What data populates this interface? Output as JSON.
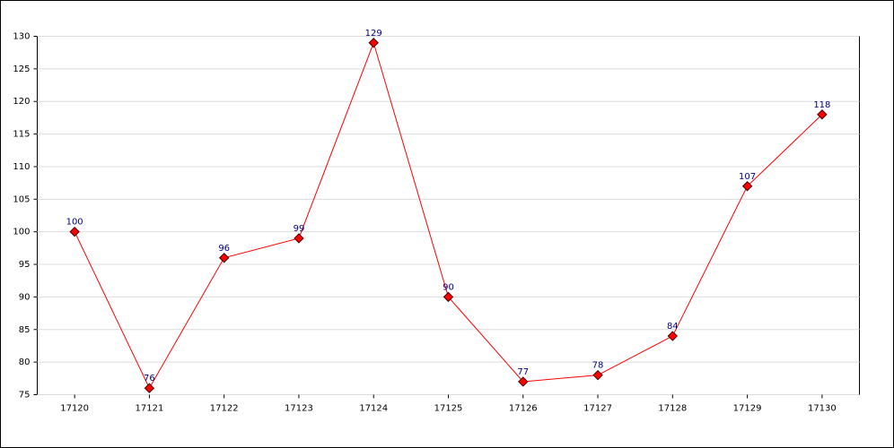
{
  "chart_data": {
    "type": "line",
    "categories": [
      "17120",
      "17121",
      "17122",
      "17123",
      "17124",
      "17125",
      "17126",
      "17127",
      "17128",
      "17129",
      "17130"
    ],
    "values": [
      100,
      76,
      96,
      99,
      129,
      90,
      77,
      78,
      84,
      107,
      118
    ],
    "color": "#ff0000",
    "label_color": "#000080",
    "ylim": [
      75,
      130
    ],
    "yticks": [
      75,
      80,
      85,
      90,
      95,
      100,
      105,
      110,
      115,
      120,
      125,
      130
    ],
    "grid": true
  }
}
